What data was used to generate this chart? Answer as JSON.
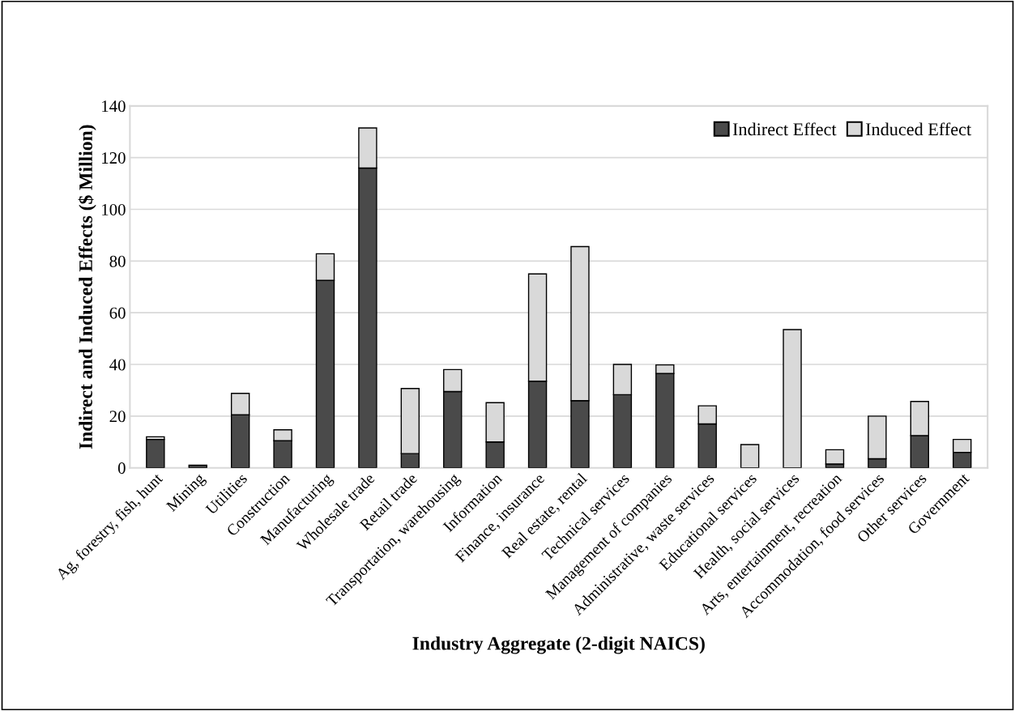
{
  "chart_data": {
    "type": "bar",
    "stacked": true,
    "xlabel": "Industry Aggregate (2-digit NAICS)",
    "ylabel": "Indirect and Induced Effects ($ Million)",
    "categories": [
      "Ag, forestry, fish, hunt",
      "Mining",
      "Utilities",
      "Construction",
      "Manufacturing",
      "Wholesale trade",
      "Retail trade",
      "Transportation, warehousing",
      "Information",
      "Finance, insurance",
      "Real estate, rental",
      "Technical services",
      "Management of companies",
      "Administrative, waste services",
      "Educational services",
      "Health, social services",
      "Arts, entertainment, recreation",
      "Accommodation, food services",
      "Other services",
      "Government"
    ],
    "series": [
      {
        "name": "Indirect Effect",
        "color": "#4a4a4a",
        "values": [
          11,
          1,
          20.5,
          10.5,
          72.5,
          116,
          5.5,
          29.5,
          10,
          33.5,
          26,
          28.3,
          36.5,
          17,
          0,
          0,
          1.5,
          3.5,
          12.5,
          6
        ]
      },
      {
        "name": "Induced Effect",
        "color": "#d9d9d9",
        "values": [
          1,
          0,
          8.3,
          4.2,
          10.3,
          15.5,
          25.2,
          8.5,
          15.2,
          41.5,
          59.6,
          11.7,
          3.3,
          7,
          9,
          53.5,
          5.5,
          16.5,
          13.2,
          5
        ]
      }
    ],
    "ylim": [
      0,
      140
    ],
    "yticks": [
      0,
      20,
      40,
      60,
      80,
      100,
      120,
      140
    ],
    "grid": "y",
    "legend": "top right"
  }
}
